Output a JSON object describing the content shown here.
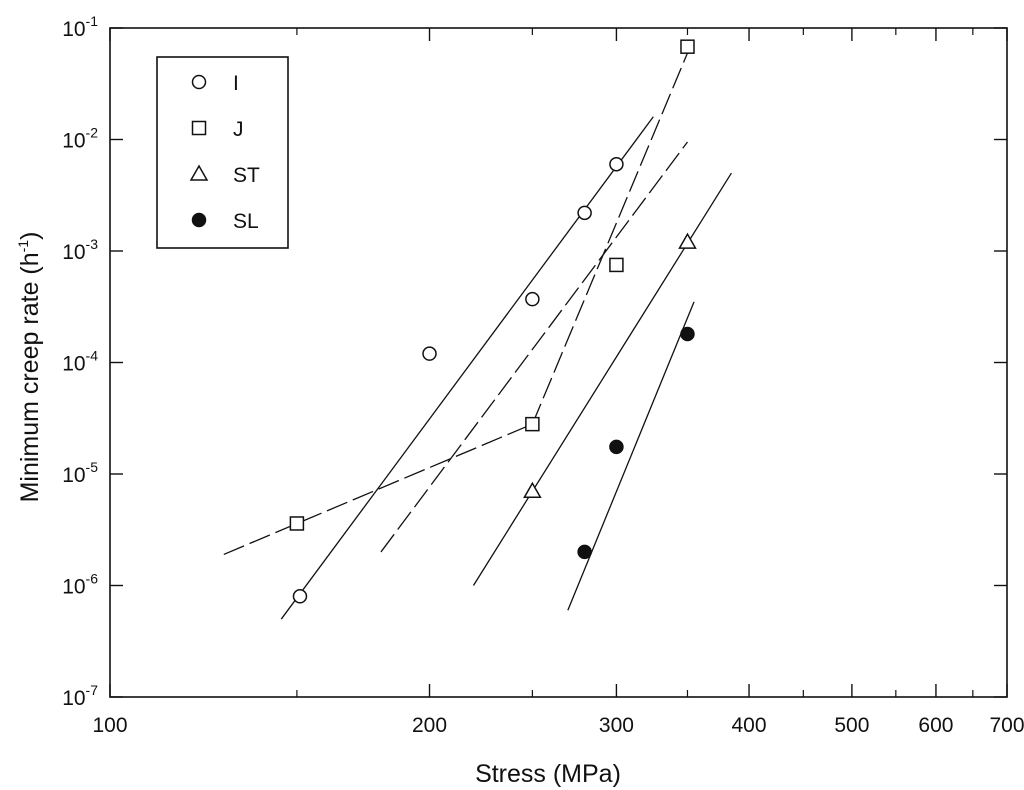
{
  "chart_data": {
    "type": "scatter",
    "xlabel": "Stress (MPa)",
    "ylabel": "Minimum creep rate (h",
    "ylabel_sup": "-1",
    "ylabel_close": ")",
    "x_scale": "log",
    "y_scale": "log",
    "xlim": [
      100,
      700
    ],
    "ylim": [
      1e-07,
      0.1
    ],
    "grid": false,
    "legend_position": "top-left",
    "x_ticks": [
      {
        "value": 100,
        "label": "100"
      },
      {
        "value": 200,
        "label": "200"
      },
      {
        "value": 300,
        "label": "300"
      },
      {
        "value": 400,
        "label": "400"
      },
      {
        "value": 500,
        "label": "500"
      },
      {
        "value": 600,
        "label": "600"
      },
      {
        "value": 700,
        "label": "700"
      }
    ],
    "x_minor_ticks": [
      150,
      250,
      350,
      450,
      550,
      650
    ],
    "y_ticks": [
      {
        "value": 1e-07,
        "base": "10",
        "exp": "-7"
      },
      {
        "value": 1e-06,
        "base": "10",
        "exp": "-6"
      },
      {
        "value": 1e-05,
        "base": "10",
        "exp": "-5"
      },
      {
        "value": 0.0001,
        "base": "10",
        "exp": "-4"
      },
      {
        "value": 0.001,
        "base": "10",
        "exp": "-3"
      },
      {
        "value": 0.01,
        "base": "10",
        "exp": "-2"
      },
      {
        "value": 0.1,
        "base": "10",
        "exp": "-1"
      }
    ],
    "series": [
      {
        "name": "I",
        "marker": "circle",
        "x": [
          151,
          200,
          250,
          280,
          300
        ],
        "y": [
          8e-07,
          0.00012,
          0.00037,
          0.0022,
          0.006
        ]
      },
      {
        "name": "J",
        "marker": "square",
        "x": [
          150,
          250,
          300,
          350
        ],
        "y": [
          3.6e-06,
          2.8e-05,
          0.00075,
          0.068
        ]
      },
      {
        "name": "ST",
        "marker": "triangle",
        "x": [
          250,
          350
        ],
        "y": [
          7e-06,
          0.0012
        ]
      },
      {
        "name": "SL",
        "marker": "filled-circle",
        "x": [
          280,
          300,
          350
        ],
        "y": [
          2e-06,
          1.75e-05,
          0.00018
        ]
      }
    ],
    "fit_lines": [
      {
        "series": "I",
        "style": "solid",
        "x": [
          145,
          325
        ],
        "y": [
          5e-07,
          0.016
        ]
      },
      {
        "series": "J",
        "style": "dashed",
        "x": [
          128,
          250
        ],
        "y": [
          1.9e-06,
          2.8e-05
        ]
      },
      {
        "series": "J",
        "style": "dashed",
        "x": [
          250,
          352
        ],
        "y": [
          2.8e-05,
          0.068
        ]
      },
      {
        "series": "J",
        "style": "dashed",
        "x": [
          180,
          350
        ],
        "y": [
          2e-06,
          0.0095
        ]
      },
      {
        "series": "ST",
        "style": "solid",
        "x": [
          220,
          385
        ],
        "y": [
          1e-06,
          0.005
        ]
      },
      {
        "series": "SL",
        "style": "solid",
        "x": [
          270,
          355
        ],
        "y": [
          6e-07,
          0.00035
        ]
      }
    ]
  }
}
